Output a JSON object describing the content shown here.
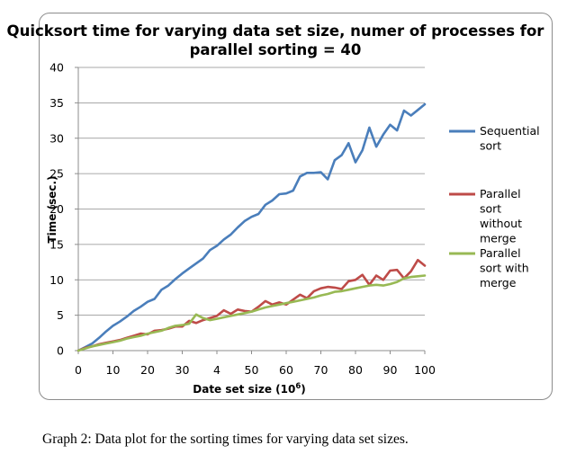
{
  "caption": "Graph 2: Data plot for the sorting times for varying data set sizes.",
  "chart_data": {
    "type": "line",
    "title_lines": [
      "Quicksort time for varying data set size, numer of processes for",
      "parallel sorting = 40"
    ],
    "xlabel": "Date set size (10",
    "xlabel_exponent": "6",
    "xlabel_suffix": ")",
    "ylabel": "Time (sec.)",
    "xlim": [
      0,
      100
    ],
    "ylim": [
      0,
      40
    ],
    "x_ticks": [
      "0",
      "10",
      "20",
      "30",
      "4",
      "50",
      "60",
      "70",
      "80",
      "90",
      "100"
    ],
    "y_ticks": [
      "0",
      "5",
      "10",
      "15",
      "20",
      "25",
      "30",
      "35",
      "40"
    ],
    "grid": "horizontal",
    "legend_position": "right",
    "x": [
      0,
      2,
      4,
      6,
      8,
      10,
      12,
      14,
      16,
      18,
      20,
      22,
      24,
      26,
      28,
      30,
      32,
      34,
      36,
      38,
      40,
      42,
      44,
      46,
      48,
      50,
      52,
      54,
      56,
      58,
      60,
      62,
      64,
      66,
      68,
      70,
      72,
      74,
      76,
      78,
      80,
      82,
      84,
      86,
      88,
      90,
      92,
      94,
      96,
      98,
      100
    ],
    "series": [
      {
        "name": "Sequential sort",
        "color": "#4a7ebb",
        "values": [
          0,
          0.5,
          1.0,
          1.8,
          2.7,
          3.5,
          4.1,
          4.8,
          5.6,
          6.2,
          6.9,
          7.3,
          8.6,
          9.2,
          10.1,
          10.9,
          11.6,
          12.3,
          13.0,
          14.2,
          14.8,
          15.7,
          16.4,
          17.4,
          18.3,
          18.9,
          19.3,
          20.6,
          21.2,
          22.1,
          22.2,
          22.6,
          24.6,
          25.1,
          25.1,
          25.2,
          24.2,
          26.9,
          27.6,
          29.3,
          26.6,
          28.3,
          31.5,
          28.8,
          30.5,
          31.9,
          31.1,
          33.9,
          33.2,
          34.0,
          34.8
        ]
      },
      {
        "name": "Parallel sort without merge",
        "color": "#be4b48",
        "values": [
          0,
          0.4,
          0.6,
          0.9,
          1.1,
          1.3,
          1.5,
          1.8,
          2.1,
          2.4,
          2.3,
          2.8,
          2.9,
          3.1,
          3.4,
          3.4,
          4.2,
          3.9,
          4.3,
          4.6,
          4.9,
          5.7,
          5.2,
          5.8,
          5.6,
          5.5,
          6.2,
          7.0,
          6.5,
          6.8,
          6.5,
          7.2,
          7.9,
          7.4,
          8.4,
          8.8,
          9.0,
          8.9,
          8.7,
          9.8,
          10.0,
          10.7,
          9.3,
          10.6,
          10.0,
          11.3,
          11.4,
          10.2,
          11.2,
          12.8,
          12.0
        ]
      },
      {
        "name": "Parallel sort with merge",
        "color": "#98b954",
        "values": [
          0,
          0.3,
          0.6,
          0.8,
          1.0,
          1.2,
          1.4,
          1.7,
          1.9,
          2.1,
          2.4,
          2.6,
          2.8,
          3.2,
          3.5,
          3.6,
          3.8,
          5.1,
          4.6,
          4.3,
          4.5,
          4.7,
          4.9,
          5.1,
          5.3,
          5.5,
          5.8,
          6.1,
          6.3,
          6.5,
          6.7,
          6.9,
          7.1,
          7.3,
          7.5,
          7.8,
          8.0,
          8.3,
          8.4,
          8.6,
          8.8,
          9.0,
          9.2,
          9.3,
          9.2,
          9.4,
          9.7,
          10.2,
          10.4,
          10.5,
          10.6
        ]
      }
    ],
    "legend_entries": [
      {
        "lines": [
          "Sequential",
          "sort"
        ]
      },
      {
        "lines": [
          "Parallel",
          "sort",
          "without",
          "merge"
        ]
      },
      {
        "lines": [
          "Parallel",
          "sort with",
          "merge"
        ]
      }
    ]
  }
}
